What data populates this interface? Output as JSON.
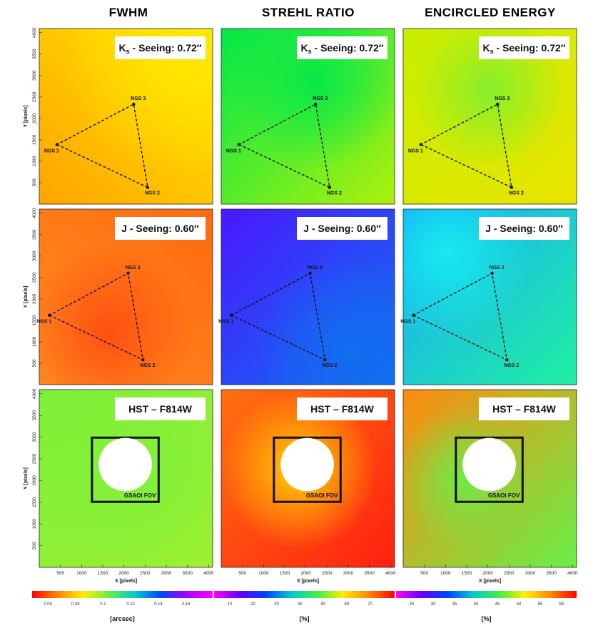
{
  "columns": [
    "FWHM",
    "STREHL RATIO",
    "ENCIRCLED ENERGY"
  ],
  "axes": {
    "xlabel": "X [pixels]",
    "ylabel": "Y [pixels]",
    "xticks": [
      500,
      1000,
      1500,
      2000,
      2500,
      3000,
      3500,
      4000
    ],
    "yticks": [
      500,
      1000,
      1500,
      2000,
      2500,
      3000,
      3500,
      4000
    ],
    "range": [
      0,
      4096
    ]
  },
  "rows": [
    {
      "label_main": "K",
      "label_sub": "s",
      "label_rest": " - Seeing: 0.72″",
      "ngs": [
        {
          "name": "NGS 1",
          "x": 420,
          "y": 1390
        },
        {
          "name": "NGS 2",
          "x": 2560,
          "y": 390
        },
        {
          "name": "NGS 3",
          "x": 2230,
          "y": 2330
        }
      ],
      "panels": [
        {
          "type": "fwhm_k",
          "colors": {
            "a": "#ffa400",
            "b": "#ffc300",
            "c": "#ffe800"
          }
        },
        {
          "type": "strehl_k",
          "colors": {
            "a": "#00e84a",
            "b": "#40ee28",
            "c": "#aef00c"
          }
        },
        {
          "type": "ee_k",
          "colors": {
            "a": "#c9ee00",
            "b": "#7cf030",
            "c": "#e8e400"
          }
        }
      ]
    },
    {
      "label_main": "J - Seeing: 0.60″",
      "ngs": [
        {
          "name": "NGS 1",
          "x": 240,
          "y": 1620
        },
        {
          "name": "NGS 2",
          "x": 2450,
          "y": 580
        },
        {
          "name": "NGS 3",
          "x": 2100,
          "y": 2600
        }
      ],
      "panels": [
        {
          "type": "fwhm_j",
          "colors": {
            "a": "#ff6a10",
            "b": "#ff4a10",
            "c": "#ff8c20"
          }
        },
        {
          "type": "strehl_j",
          "colors": {
            "a": "#4a18ff",
            "b": "#0a30f0",
            "c": "#1070f0"
          }
        },
        {
          "type": "ee_j",
          "colors": {
            "a": "#18a8ff",
            "b": "#18f0f0",
            "c": "#20f0a0"
          }
        }
      ]
    },
    {
      "label_main": "HST – F814W",
      "fov_label": "GSAOI FOV",
      "panels": [
        {
          "type": "fwhm_h",
          "colors": {
            "a": "#7ef03a",
            "b": "#62f05a",
            "c": "#9ef030"
          }
        },
        {
          "type": "strehl_h",
          "colors": {
            "a": "#ff7010",
            "b": "#ffe000",
            "c": "#ff2010"
          }
        },
        {
          "type": "ee_h",
          "colors": {
            "a": "#ff8a10",
            "b": "#ffd800",
            "c": "#66f048"
          }
        }
      ]
    }
  ],
  "colorbars": [
    {
      "ticks": [
        "0.05",
        "0.08",
        "0.1",
        "0.12",
        "0.14",
        "0.16"
      ],
      "label": "[arcsec]",
      "stops": [
        "#ff0000",
        "#ff8800",
        "#ffee00",
        "#66ee44",
        "#00cccc",
        "#0044ff",
        "#aa00ff",
        "#ff00ff"
      ]
    },
    {
      "ticks": [
        "10",
        "20",
        "30",
        "40",
        "50",
        "60",
        "70"
      ],
      "label": "[%]",
      "stops": [
        "#ff00ff",
        "#6600ff",
        "#0044ff",
        "#00cccc",
        "#44ee44",
        "#ffee00",
        "#ff8800",
        "#ff0000"
      ]
    },
    {
      "ticks": [
        "25",
        "30",
        "35",
        "40",
        "45",
        "50",
        "55",
        "60"
      ],
      "label": "[%]",
      "stops": [
        "#ff00ff",
        "#6600ff",
        "#0044ff",
        "#00cccc",
        "#44ee44",
        "#ffee00",
        "#ff8800",
        "#ff0000"
      ]
    }
  ],
  "chart_data": {
    "type": "heatmap",
    "description_grid": "3 rows x 3 columns of 2D maps over detector field",
    "columns": [
      "FWHM",
      "STREHL RATIO",
      "ENCIRCLED ENERGY"
    ],
    "rows": [
      "Kₛ - Seeing: 0.72″",
      "J - Seeing: 0.60″",
      "HST – F814W"
    ],
    "xlabel": "X [pixels]",
    "ylabel": "Y [pixels]",
    "xlim": [
      0,
      4096
    ],
    "ylim": [
      0,
      4096
    ],
    "colorbar_ranges": {
      "FWHM": {
        "min": 0.04,
        "max": 0.18,
        "unit": "[arcsec]"
      },
      "STREHL RATIO": {
        "min": 5,
        "max": 75,
        "unit": "[%]"
      },
      "ENCIRCLED ENERGY": {
        "min": 22,
        "max": 63,
        "unit": "[%]"
      }
    }
  }
}
